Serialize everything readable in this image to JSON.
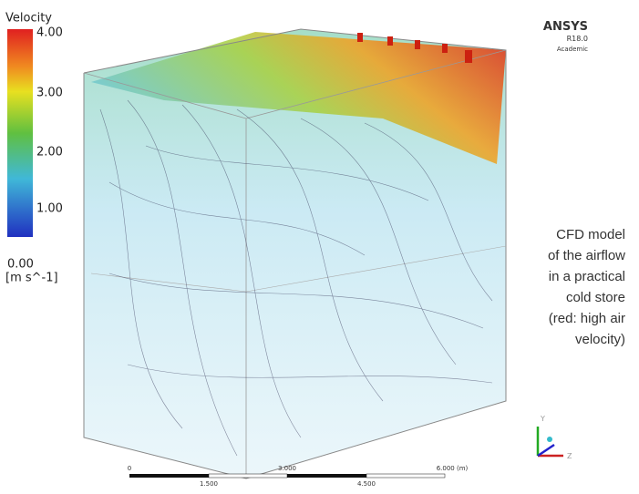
{
  "legend": {
    "title": "Velocity",
    "ticks": [
      "4.00",
      "3.00",
      "2.00",
      "1.00",
      "0.00"
    ],
    "unit": "[m s^-1]"
  },
  "logo": {
    "name": "ANSYS",
    "version": "R18.0",
    "edition": "Academic"
  },
  "caption": [
    "CFD model",
    "of the airflow",
    "in a practical",
    "cold store",
    "(red: high air",
    "velocity)"
  ],
  "scale_bar": {
    "top": [
      "0",
      "3.000",
      "6.000 (m)"
    ],
    "bottom": [
      "1.500",
      "4.500"
    ]
  },
  "triad": [
    "Y",
    "Z"
  ]
}
